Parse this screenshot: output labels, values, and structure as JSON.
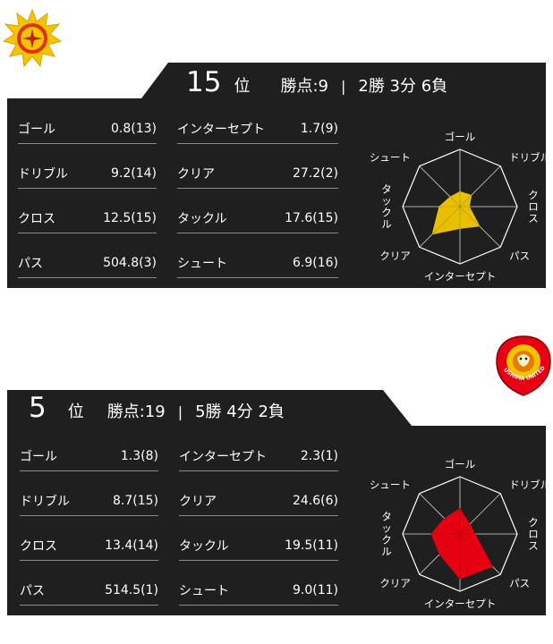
{
  "team1": {
    "rank": "15",
    "rank_unit": "位",
    "points": "勝点:9",
    "separator": "|",
    "record": "2勝 3分 6負",
    "color": "#e8c000",
    "stats_left": [
      {
        "label": "ゴール",
        "value": "0.8(13)"
      },
      {
        "label": "ドリブル",
        "value": "9.2(14)"
      },
      {
        "label": "クロス",
        "value": "12.5(15)"
      },
      {
        "label": "パス",
        "value": "504.8(3)"
      }
    ],
    "stats_right": [
      {
        "label": "インターセプト",
        "value": "1.7(9)"
      },
      {
        "label": "クリア",
        "value": "27.2(2)"
      },
      {
        "label": "タックル",
        "value": "17.6(15)"
      },
      {
        "label": "シュート",
        "value": "6.9(16)"
      }
    ],
    "radar": {
      "axes": [
        "ゴール",
        "ドリブル",
        "クロス",
        "パス",
        "インターセプト",
        "クリア",
        "タックル",
        "シュート"
      ],
      "values": [
        0.26,
        0.28,
        0.16,
        0.48,
        0.38,
        0.68,
        0.36,
        0.24
      ]
    }
  },
  "team2": {
    "rank": "5",
    "rank_unit": "位",
    "points": "勝点:19",
    "separator": "|",
    "record": "5勝 4分 2負",
    "color": "#e60012",
    "logo_text": "FUKUSHIMA UNITED FC",
    "stats_left": [
      {
        "label": "ゴール",
        "value": "1.3(8)"
      },
      {
        "label": "ドリブル",
        "value": "8.7(15)"
      },
      {
        "label": "クロス",
        "value": "13.4(14)"
      },
      {
        "label": "パス",
        "value": "514.5(1)"
      }
    ],
    "stats_right": [
      {
        "label": "インターセプト",
        "value": "2.3(1)"
      },
      {
        "label": "クリア",
        "value": "24.6(6)"
      },
      {
        "label": "タックル",
        "value": "19.5(11)"
      },
      {
        "label": "シュート",
        "value": "9.0(11)"
      }
    ],
    "radar": {
      "axes": [
        "ゴール",
        "ドリブル",
        "クロス",
        "パス",
        "インターセプト",
        "クリア",
        "タックル",
        "シュート"
      ],
      "values": [
        0.44,
        0.24,
        0.26,
        0.8,
        0.78,
        0.5,
        0.5,
        0.38
      ]
    }
  }
}
